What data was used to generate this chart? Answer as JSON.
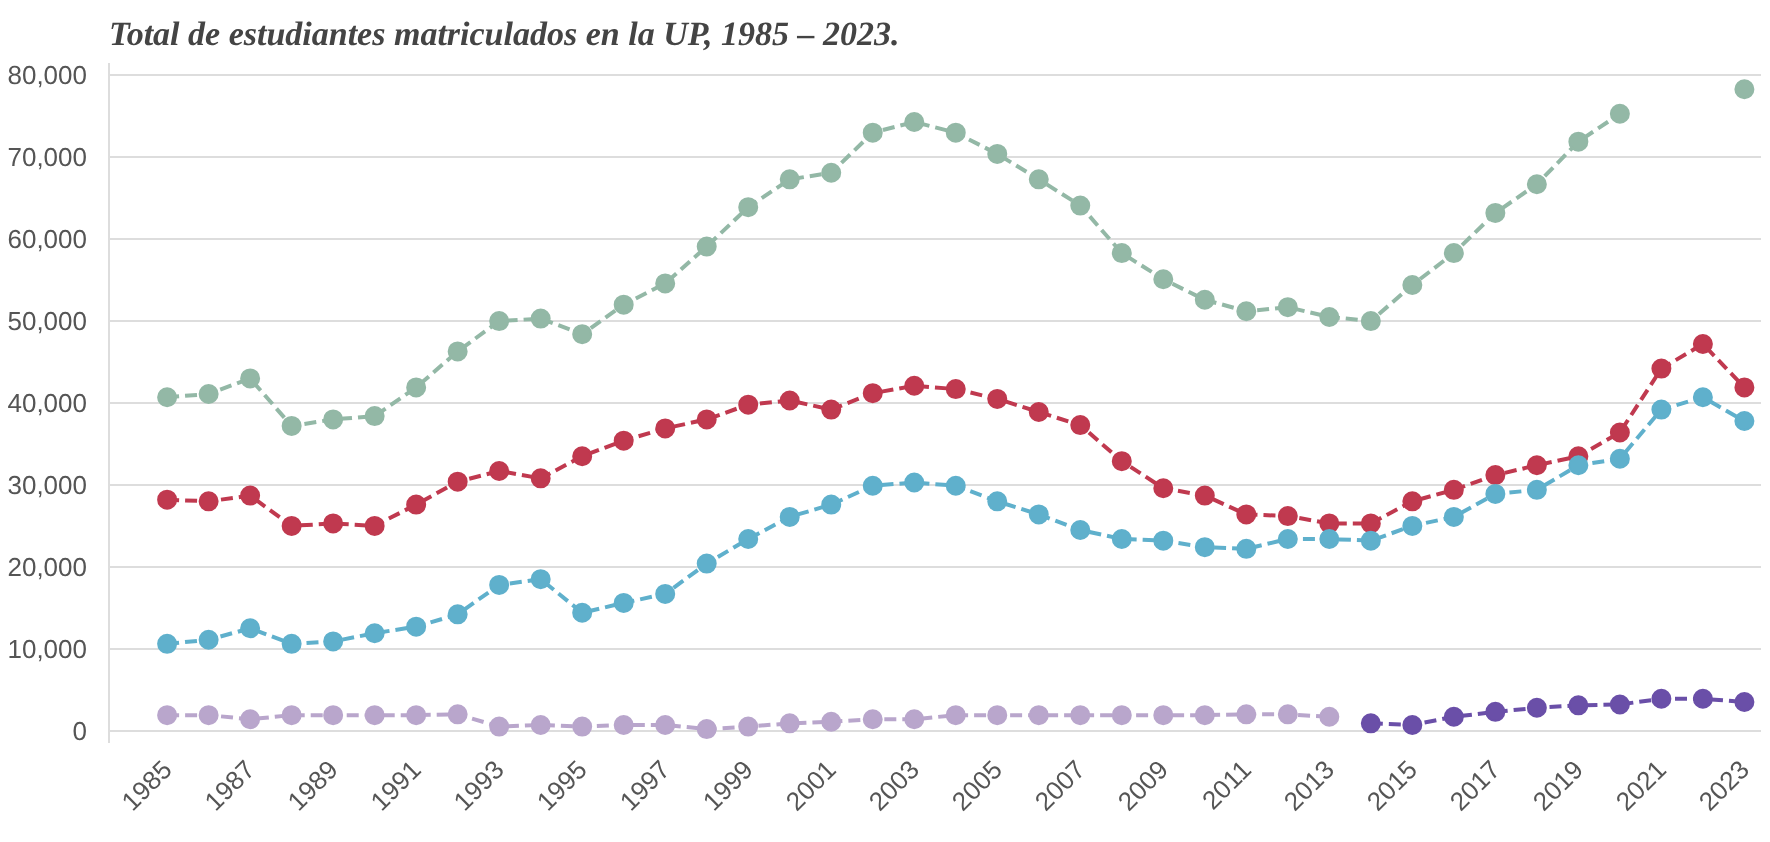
{
  "chart_data": {
    "type": "line",
    "title": "Total de estudiantes matriculados en la UP, 1985 – 2023.",
    "x": [
      1985,
      1986,
      1987,
      1988,
      1989,
      1990,
      1991,
      1992,
      1993,
      1994,
      1995,
      1996,
      1997,
      1998,
      1999,
      2000,
      2001,
      2002,
      2003,
      2004,
      2005,
      2006,
      2007,
      2008,
      2009,
      2010,
      2011,
      2012,
      2013,
      2014,
      2015,
      2016,
      2017,
      2018,
      2019,
      2020,
      2021,
      2022,
      2023
    ],
    "series": [
      {
        "color": "#93b8a6",
        "values": [
          40700,
          41100,
          43000,
          37200,
          38000,
          38400,
          41900,
          46300,
          50000,
          50300,
          48400,
          52000,
          54600,
          59100,
          63900,
          67300,
          68100,
          73000,
          74300,
          73000,
          70400,
          67300,
          64100,
          58300,
          55100,
          52600,
          51200,
          51700,
          50500,
          50000,
          54400,
          58300,
          63200,
          66700,
          71900,
          75300,
          null,
          null,
          78300
        ]
      },
      {
        "color": "#c0394f",
        "values": [
          28200,
          28000,
          28700,
          25000,
          25300,
          25000,
          27600,
          30400,
          31700,
          30800,
          33500,
          35400,
          36900,
          38000,
          39800,
          40300,
          39200,
          41200,
          42100,
          41700,
          40500,
          38900,
          37300,
          32900,
          29600,
          28700,
          26400,
          26200,
          25300,
          25300,
          28000,
          29400,
          31200,
          32400,
          33500,
          36400,
          44200,
          47200,
          41900
        ]
      },
      {
        "color": "#5fb0cc",
        "values": [
          10600,
          11100,
          12500,
          10600,
          10900,
          11900,
          12700,
          14200,
          17800,
          18500,
          14400,
          15600,
          16700,
          20400,
          23400,
          26100,
          27600,
          29900,
          30300,
          29900,
          28000,
          26400,
          24500,
          23400,
          23200,
          22400,
          22200,
          23400,
          23400,
          23200,
          25000,
          26100,
          28900,
          29400,
          32400,
          33200,
          39200,
          40700,
          37800
        ]
      },
      {
        "color": "#b9a6cc",
        "values": [
          1900,
          1900,
          1400,
          1900,
          1900,
          1900,
          1900,
          2000,
          500,
          700,
          500,
          700,
          700,
          200,
          500,
          900,
          1100,
          1400,
          1400,
          1900,
          1900,
          1900,
          1900,
          1900,
          1900,
          1900,
          2000,
          2000,
          1700,
          null,
          null,
          null,
          null,
          null,
          null,
          null,
          null,
          null,
          null
        ]
      },
      {
        "color": "#6a4fa8",
        "values": [
          null,
          null,
          null,
          null,
          null,
          null,
          null,
          null,
          null,
          null,
          null,
          null,
          null,
          null,
          null,
          null,
          null,
          null,
          null,
          null,
          null,
          null,
          null,
          null,
          null,
          null,
          null,
          null,
          null,
          900,
          700,
          1700,
          2300,
          2800,
          3100,
          3200,
          3900,
          3900,
          3500
        ]
      }
    ],
    "xlim": [
      1983.6,
      2023.4
    ],
    "ylim": [
      -1500,
      81500
    ],
    "xticks": [
      1985,
      1987,
      1989,
      1991,
      1993,
      1995,
      1997,
      1999,
      2001,
      2003,
      2005,
      2007,
      2009,
      2011,
      2013,
      2015,
      2017,
      2019,
      2021,
      2023
    ],
    "yticks": [
      {
        "value": 0,
        "label": "0"
      },
      {
        "value": 10000,
        "label": "10,000"
      },
      {
        "value": 20000,
        "label": "20,000"
      },
      {
        "value": 30000,
        "label": "30,000"
      },
      {
        "value": 40000,
        "label": "40,000"
      },
      {
        "value": 50000,
        "label": "50,000"
      },
      {
        "value": 60000,
        "label": "60,000"
      },
      {
        "value": 70000,
        "label": "70,000"
      },
      {
        "value": 80000,
        "label": "80,000"
      }
    ],
    "grid": "y",
    "marker": "circle",
    "line_style": "dashed"
  }
}
